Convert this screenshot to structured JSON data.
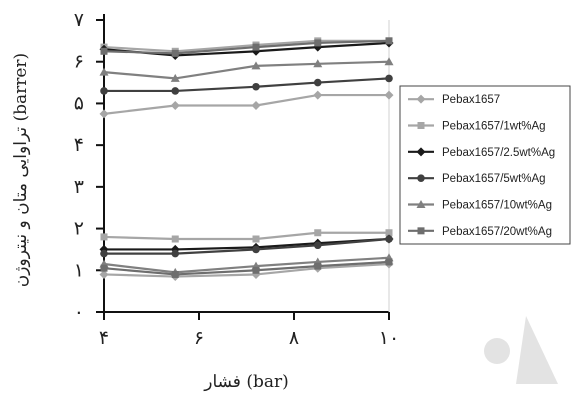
{
  "chart_data": {
    "type": "line",
    "title": "",
    "xlabel": "فشار (bar)",
    "ylabel": "تراوایی متان و نیتروژن (barrer)",
    "x": [
      4,
      5.5,
      7.2,
      8.5,
      10
    ],
    "xlim": [
      4,
      10
    ],
    "ylim": [
      0,
      7
    ],
    "xticks": [
      4,
      6,
      8,
      10
    ],
    "xtick_labels": [
      "۴",
      "۶",
      "۸",
      "۱۰"
    ],
    "yticks": [
      0,
      1,
      2,
      3,
      4,
      5,
      6,
      7
    ],
    "ytick_labels": [
      "۰",
      "۱",
      "۲",
      "۳",
      "۴",
      "۵",
      "۶",
      "۷"
    ],
    "legend_position": "right",
    "series": [
      {
        "name": "Pebax1657",
        "color": "#a6a6a6",
        "marker": "diamond",
        "values": [
          4.75,
          4.95,
          4.95,
          5.2,
          5.2
        ]
      },
      {
        "name": "Pebax1657/1wt%Ag",
        "color": "#a6a6a6",
        "marker": "square",
        "values": [
          6.35,
          6.25,
          6.4,
          6.5,
          6.5
        ]
      },
      {
        "name": "Pebax1657/2.5wt%Ag",
        "color": "#1a1a1a",
        "marker": "diamond",
        "values": [
          6.3,
          6.15,
          6.25,
          6.35,
          6.45
        ]
      },
      {
        "name": "Pebax1657/5wt%Ag",
        "color": "#404040",
        "marker": "circle",
        "values": [
          5.3,
          5.3,
          5.4,
          5.5,
          5.6
        ]
      },
      {
        "name": "Pebax1657/10wt%Ag",
        "color": "#808080",
        "marker": "triangle",
        "values": [
          5.75,
          5.6,
          5.9,
          5.95,
          6.0
        ]
      },
      {
        "name": "Pebax1657/20wt%Ag",
        "color": "#6e6e6e",
        "marker": "square",
        "values": [
          6.25,
          6.2,
          6.35,
          6.45,
          6.5
        ]
      },
      {
        "name": "",
        "color": "#a6a6a6",
        "marker": "diamond",
        "values": [
          0.9,
          0.85,
          0.9,
          1.05,
          1.15
        ]
      },
      {
        "name": "",
        "color": "#a6a6a6",
        "marker": "square",
        "values": [
          1.8,
          1.75,
          1.75,
          1.9,
          1.9
        ]
      },
      {
        "name": "",
        "color": "#1a1a1a",
        "marker": "diamond",
        "values": [
          1.5,
          1.5,
          1.55,
          1.65,
          1.75
        ]
      },
      {
        "name": "",
        "color": "#404040",
        "marker": "circle",
        "values": [
          1.4,
          1.4,
          1.5,
          1.6,
          1.75
        ]
      },
      {
        "name": "",
        "color": "#808080",
        "marker": "triangle",
        "values": [
          1.15,
          0.95,
          1.1,
          1.2,
          1.3
        ]
      },
      {
        "name": "",
        "color": "#6e6e6e",
        "marker": "square",
        "values": [
          1.05,
          0.9,
          1.0,
          1.1,
          1.2
        ]
      }
    ]
  }
}
